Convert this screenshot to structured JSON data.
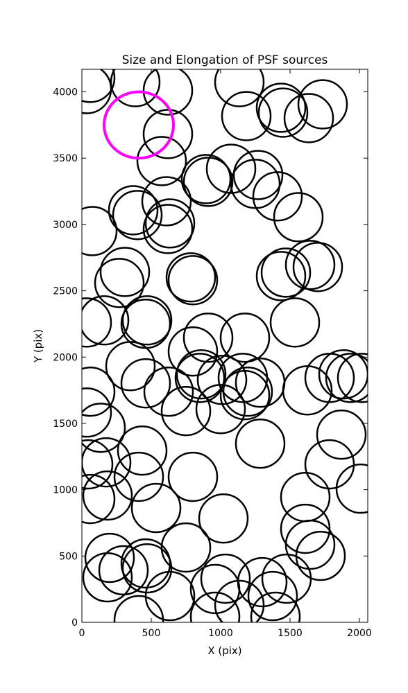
{
  "chart_data": {
    "type": "ellipse",
    "title": "Size and Elongation of PSF sources",
    "xlabel": "X (pix)",
    "ylabel": "Y (pix)",
    "xlim": [
      0,
      2060
    ],
    "ylim": [
      0,
      4170
    ],
    "xticks": [
      0,
      500,
      1000,
      1500,
      2000
    ],
    "yticks": [
      0,
      500,
      1000,
      1500,
      2000,
      2500,
      3000,
      3500,
      4000
    ],
    "series": [
      {
        "color": "#000000",
        "linewidth": 2.5,
        "width": 350,
        "height": 365,
        "x": [
          60,
          35,
          385,
          620,
          1135,
          1185,
          1435,
          1450,
          1735,
          1635,
          620,
          575,
          895,
          910,
          1075,
          1250,
          1270,
          1410,
          1560,
          610,
          370,
          400,
          635,
          620,
          75,
          310,
          270,
          785,
          800,
          1435,
          1470,
          1645,
          1700,
          160,
          35,
          470,
          460,
          910,
          1175,
          1535,
          800,
          350,
          460,
          625,
          750,
          860,
          850,
          1010,
          1160,
          1195,
          1285,
          1000,
          1175,
          1625,
          1785,
          1935,
          2020,
          1885,
          60,
          35,
          135,
          1285,
          1870,
          175,
          435,
          45,
          1785,
          410,
          800,
          2010,
          185,
          60,
          1610,
          535,
          1020,
          1610,
          1645,
          750,
          1720,
          200,
          300,
          460,
          470,
          185,
          1475,
          635,
          960,
          1035,
          1300,
          1375,
          1135,
          410,
          960,
          1395
        ],
        "y": [
          4105,
          4021,
          4073,
          4010,
          4073,
          3817,
          3880,
          3843,
          3906,
          3802,
          3682,
          3478,
          3342,
          3321,
          3420,
          3306,
          3373,
          3212,
          3055,
          3175,
          3107,
          3071,
          3008,
          2966,
          2950,
          2642,
          2559,
          2601,
          2580,
          2611,
          2637,
          2695,
          2679,
          2277,
          2261,
          2277,
          2251,
          2146,
          2146,
          2261,
          2042,
          1932,
          1802,
          1739,
          1593,
          1870,
          1843,
          1828,
          1843,
          1739,
          1807,
          1608,
          1713,
          1749,
          1843,
          1843,
          1843,
          1870,
          1739,
          1582,
          1467,
          1347,
          1415,
          1206,
          1295,
          1191,
          1191,
          1097,
          1097,
          1008,
          956,
          930,
          945,
          862,
          783,
          705,
          585,
          564,
          501,
          486,
          392,
          444,
          407,
          339,
          329,
          198,
          251,
          329,
          303,
          198,
          131,
          16,
          42,
          42
        ]
      },
      {
        "color": "#ff00ff",
        "linewidth": 4,
        "width": 500,
        "height": 500,
        "x": [
          410
        ],
        "y": [
          3750
        ]
      }
    ]
  }
}
